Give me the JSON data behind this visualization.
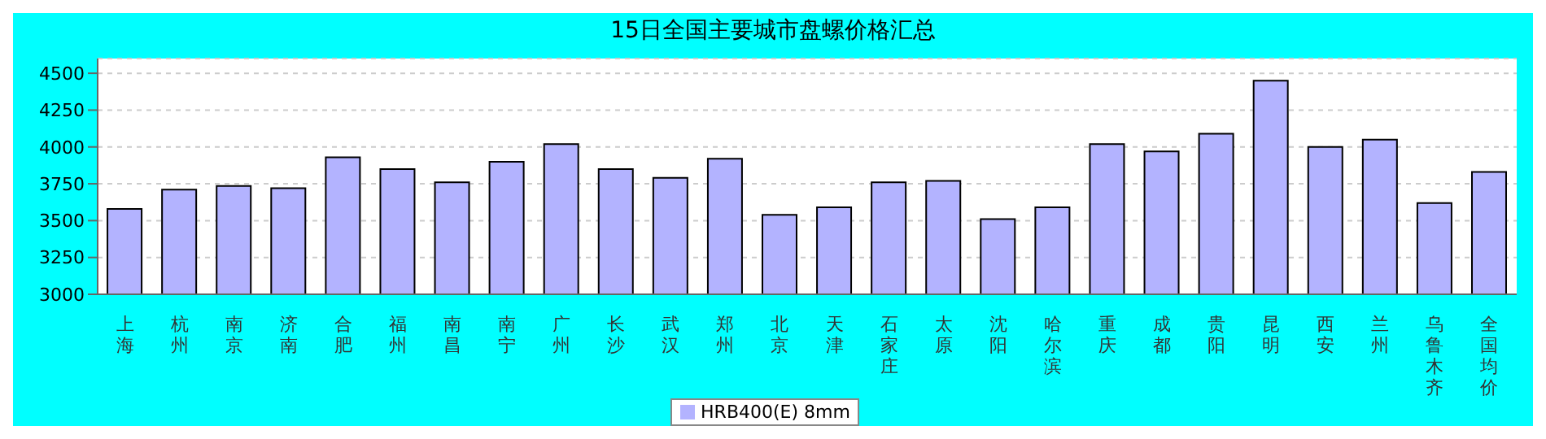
{
  "chart_data": {
    "type": "bar",
    "title": "15日全国主要城市盘螺价格汇总",
    "categories": [
      "上海",
      "杭州",
      "南京",
      "济南",
      "合肥",
      "福州",
      "南昌",
      "南宁",
      "广州",
      "长沙",
      "武汉",
      "郑州",
      "北京",
      "天津",
      "石家庄",
      "太原",
      "沈阳",
      "哈尔滨",
      "重庆",
      "成都",
      "贵阳",
      "昆明",
      "西安",
      "兰州",
      "乌鲁木齐",
      "全国均价"
    ],
    "series": [
      {
        "name": "HRB400(E) 8mm",
        "color": "#b3b3ff",
        "values": [
          3580,
          3710,
          3735,
          3720,
          3930,
          3850,
          3760,
          3900,
          4020,
          3850,
          3790,
          3920,
          3540,
          3590,
          3760,
          3770,
          3510,
          3590,
          4020,
          3970,
          4090,
          4450,
          4000,
          4050,
          3620,
          3830
        ]
      }
    ],
    "ylim": [
      3000,
      4600
    ],
    "yticks": [
      3000,
      3250,
      3500,
      3750,
      4000,
      4250,
      4500
    ],
    "grid": "y",
    "legend": "bottom"
  }
}
